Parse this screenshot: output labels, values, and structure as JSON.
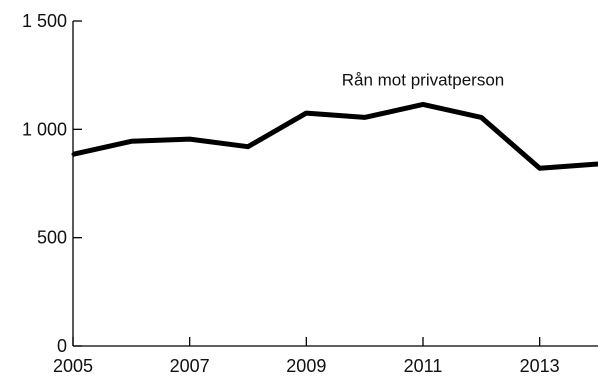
{
  "chart_data": {
    "type": "line",
    "title": "",
    "xlabel": "",
    "ylabel": "",
    "x": [
      2005,
      2006,
      2007,
      2008,
      2009,
      2010,
      2011,
      2012,
      2013,
      2014
    ],
    "x_tick_values": [
      2005,
      2007,
      2009,
      2011,
      2013
    ],
    "x_tick_labels": [
      "2005",
      "2007",
      "2009",
      "2011",
      "2013"
    ],
    "y_tick_values": [
      0,
      500,
      1000,
      1500
    ],
    "y_tick_labels": [
      "0",
      "500",
      "1 000",
      "1 500"
    ],
    "xlim": [
      2005,
      2014
    ],
    "ylim": [
      0,
      1500
    ],
    "grid": false,
    "series": [
      {
        "values": [
          885,
          945,
          955,
          920,
          1075,
          1055,
          1115,
          1055,
          820,
          840
        ],
        "color": "#000000"
      }
    ],
    "annotations": [
      {
        "text": "Rån mot privatperson",
        "x": 2011,
        "y": 1230
      }
    ]
  }
}
